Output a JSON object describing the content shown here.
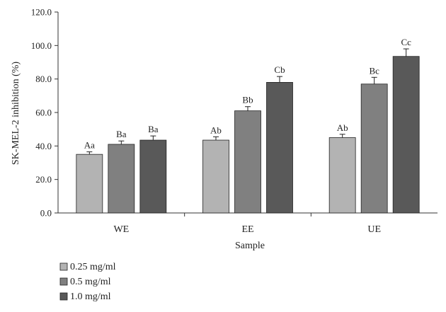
{
  "chart_data": {
    "type": "bar",
    "xlabel": "Sample",
    "ylabel": "SK-MEL-2 inhibition (%)",
    "ylim": [
      0,
      120
    ],
    "yticks": [
      "0.0",
      "20.0",
      "40.0",
      "60.0",
      "80.0",
      "100.0",
      "120.0"
    ],
    "categories": [
      "WE",
      "EE",
      "UE"
    ],
    "series": [
      {
        "name": "0.25 mg/ml",
        "color": "#b3b3b3",
        "values": [
          35.0,
          43.5,
          45.0
        ],
        "errors": [
          1.5,
          2.0,
          2.0
        ],
        "labels": [
          "Aa",
          "Ab",
          "Ab"
        ]
      },
      {
        "name": "0.5 mg/ml",
        "color": "#808080",
        "values": [
          41.0,
          61.0,
          77.0
        ],
        "errors": [
          2.0,
          2.5,
          4.0
        ],
        "labels": [
          "Ba",
          "Bb",
          "Bc"
        ]
      },
      {
        "name": "1.0 mg/ml",
        "color": "#595959",
        "values": [
          43.5,
          78.0,
          93.5
        ],
        "errors": [
          2.5,
          3.5,
          4.5
        ],
        "labels": [
          "Ba",
          "Cb",
          "Cc"
        ]
      }
    ],
    "grid": false,
    "legend": "bottom-left"
  }
}
